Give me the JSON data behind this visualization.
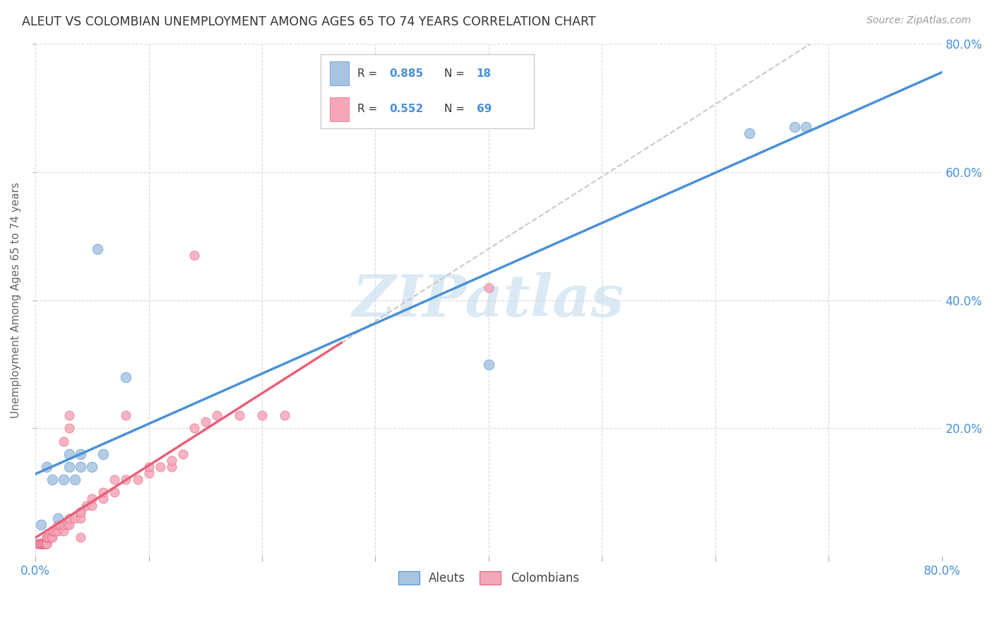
{
  "title": "ALEUT VS COLOMBIAN UNEMPLOYMENT AMONG AGES 65 TO 74 YEARS CORRELATION CHART",
  "source": "Source: ZipAtlas.com",
  "ylabel": "Unemployment Among Ages 65 to 74 years",
  "xlim": [
    0.0,
    0.8
  ],
  "ylim": [
    0.0,
    0.8
  ],
  "xtick_vals": [
    0.0,
    0.1,
    0.2,
    0.3,
    0.4,
    0.5,
    0.6,
    0.7,
    0.8
  ],
  "ytick_vals": [
    0.2,
    0.4,
    0.6,
    0.8
  ],
  "right_ytick_vals": [
    0.2,
    0.4,
    0.6,
    0.8
  ],
  "right_ytick_labels": [
    "20.0%",
    "40.0%",
    "60.0%",
    "80.0%"
  ],
  "aleut_color": "#a8c4e0",
  "colombian_color": "#f4a7b9",
  "aleut_line_color": "#4a90d9",
  "colombian_line_color": "#e8607a",
  "dashed_line_color": "#c8c8c8",
  "legend_label1": "Aleuts",
  "legend_label2": "Colombians",
  "watermark_text": "ZIPatlas",
  "watermark_color": "#cce0f0",
  "aleut_x": [
    0.005,
    0.01,
    0.015,
    0.02,
    0.025,
    0.03,
    0.03,
    0.035,
    0.04,
    0.04,
    0.05,
    0.055,
    0.06,
    0.08,
    0.4,
    0.63,
    0.67,
    0.68
  ],
  "aleut_y": [
    0.05,
    0.14,
    0.12,
    0.06,
    0.12,
    0.14,
    0.16,
    0.12,
    0.16,
    0.14,
    0.14,
    0.48,
    0.16,
    0.28,
    0.3,
    0.66,
    0.67,
    0.67
  ],
  "colombian_x": [
    0.002,
    0.003,
    0.003,
    0.004,
    0.004,
    0.005,
    0.005,
    0.005,
    0.005,
    0.006,
    0.007,
    0.007,
    0.007,
    0.008,
    0.008,
    0.008,
    0.009,
    0.009,
    0.01,
    0.01,
    0.01,
    0.01,
    0.012,
    0.012,
    0.014,
    0.015,
    0.015,
    0.016,
    0.018,
    0.02,
    0.02,
    0.022,
    0.025,
    0.025,
    0.028,
    0.03,
    0.03,
    0.035,
    0.04,
    0.04,
    0.04,
    0.045,
    0.05,
    0.05,
    0.06,
    0.06,
    0.07,
    0.07,
    0.08,
    0.08,
    0.09,
    0.1,
    0.1,
    0.11,
    0.12,
    0.12,
    0.13,
    0.14,
    0.14,
    0.15,
    0.16,
    0.18,
    0.2,
    0.22,
    0.025,
    0.03,
    0.03,
    0.04,
    0.4
  ],
  "colombian_y": [
    0.02,
    0.02,
    0.02,
    0.02,
    0.02,
    0.02,
    0.02,
    0.02,
    0.02,
    0.02,
    0.02,
    0.02,
    0.02,
    0.02,
    0.02,
    0.02,
    0.02,
    0.02,
    0.02,
    0.02,
    0.03,
    0.03,
    0.03,
    0.03,
    0.03,
    0.03,
    0.04,
    0.04,
    0.04,
    0.04,
    0.05,
    0.05,
    0.04,
    0.05,
    0.05,
    0.05,
    0.06,
    0.06,
    0.06,
    0.07,
    0.07,
    0.08,
    0.08,
    0.09,
    0.09,
    0.1,
    0.1,
    0.12,
    0.12,
    0.22,
    0.12,
    0.13,
    0.14,
    0.14,
    0.14,
    0.15,
    0.16,
    0.47,
    0.2,
    0.21,
    0.22,
    0.22,
    0.22,
    0.22,
    0.18,
    0.2,
    0.22,
    0.03,
    0.42
  ]
}
